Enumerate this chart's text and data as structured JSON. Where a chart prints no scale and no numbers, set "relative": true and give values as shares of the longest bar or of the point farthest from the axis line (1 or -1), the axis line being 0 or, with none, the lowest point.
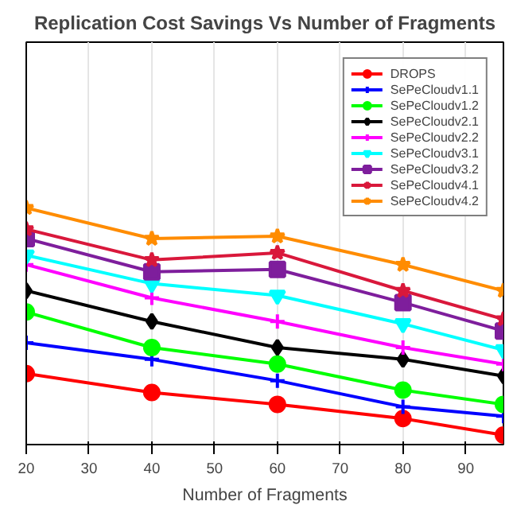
{
  "chart_data": {
    "type": "line",
    "title": "Replication Cost Savings Vs Number of Fragments",
    "xlabel": "Number of Fragments",
    "x": [
      20,
      40,
      60,
      80,
      96
    ],
    "xlim": [
      20,
      96
    ],
    "xticks": [
      20,
      30,
      40,
      50,
      60,
      70,
      80,
      90
    ],
    "relative": true,
    "grid": "x",
    "legend": "top right",
    "series": [
      {
        "name": "DROPS",
        "color": "#ff0000",
        "marker": "circle",
        "values": [
          0.3,
          0.22,
          0.17,
          0.11,
          0.04
        ]
      },
      {
        "name": "SePeCloudv1.1",
        "color": "#0000ff",
        "marker": "cross",
        "values": [
          0.43,
          0.36,
          0.27,
          0.16,
          0.12
        ]
      },
      {
        "name": "SePeCloudv1.2",
        "color": "#00ff00",
        "marker": "circle",
        "values": [
          0.56,
          0.41,
          0.34,
          0.23,
          0.17
        ]
      },
      {
        "name": "SePeCloudv2.1",
        "color": "#000000",
        "marker": "diamond",
        "values": [
          0.65,
          0.52,
          0.41,
          0.36,
          0.29
        ]
      },
      {
        "name": "SePeCloudv2.2",
        "color": "#ff00ff",
        "marker": "cross",
        "values": [
          0.76,
          0.62,
          0.52,
          0.41,
          0.34
        ]
      },
      {
        "name": "SePeCloudv3.1",
        "color": "#00ffff",
        "marker": "triangle",
        "values": [
          0.8,
          0.68,
          0.63,
          0.51,
          0.4
        ]
      },
      {
        "name": "SePeCloudv3.2",
        "color": "#7e1e9c",
        "marker": "square",
        "values": [
          0.87,
          0.73,
          0.74,
          0.6,
          0.48
        ]
      },
      {
        "name": "SePeCloudv4.1",
        "color": "#d9183b",
        "marker": "star",
        "values": [
          0.91,
          0.78,
          0.81,
          0.65,
          0.53
        ]
      },
      {
        "name": "SePeCloudv4.2",
        "color": "#ff8c00",
        "marker": "star",
        "values": [
          1,
          0.87,
          0.88,
          0.76,
          0.65
        ]
      }
    ]
  }
}
